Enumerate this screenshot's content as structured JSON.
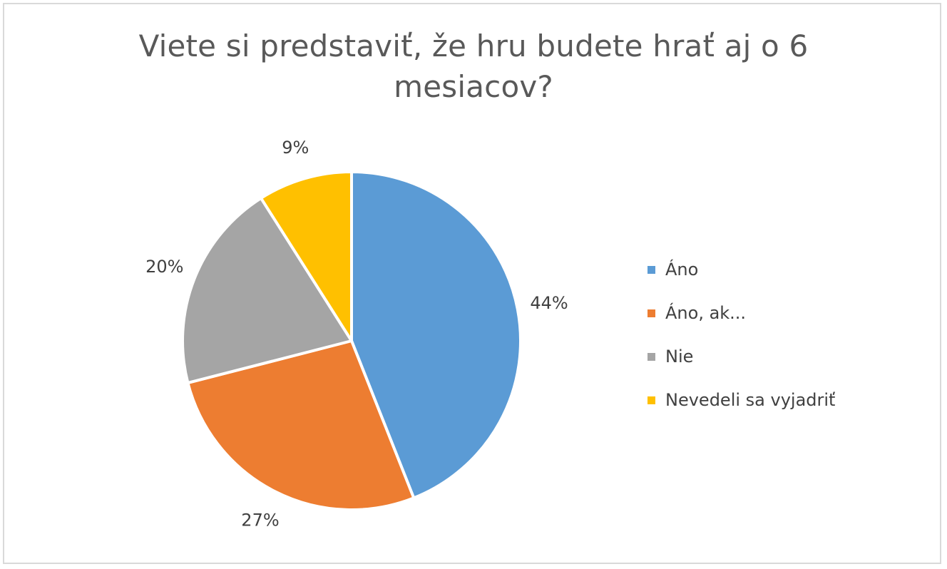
{
  "chart_data": {
    "type": "pie",
    "title": "Viete si predstaviť, že hru budete hrať aj o 6 mesiacov?",
    "categories": [
      "Áno",
      "Áno, ak...",
      "Nie",
      "Nevedeli sa vyjadriť"
    ],
    "values": [
      44,
      27,
      20,
      9
    ],
    "labels": [
      "44%",
      "27%",
      "20%",
      "9%"
    ],
    "colors": [
      "#5B9BD5",
      "#ED7D31",
      "#A5A5A5",
      "#FFC000"
    ],
    "start_angle": "12 o'clock",
    "direction": "clockwise",
    "legend_position": "right"
  }
}
